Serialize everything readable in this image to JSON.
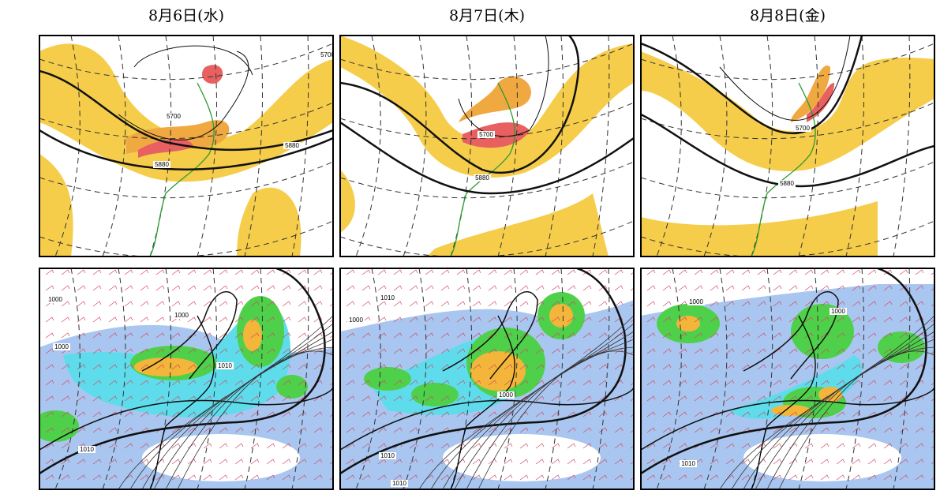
{
  "columns": [
    {
      "date": "8月6日(水)",
      "upper_labels": [
        "5700",
        "5700",
        "5880",
        "5880"
      ],
      "lower_labels": [
        "1000",
        "1000",
        "1000",
        "1010",
        "1010"
      ]
    },
    {
      "date": "8月7日(木)",
      "upper_labels": [
        "5700",
        "5880"
      ],
      "lower_labels": [
        "1010",
        "1000",
        "1000",
        "1010",
        "1010"
      ]
    },
    {
      "date": "8月8日(金)",
      "upper_labels": [
        "5700",
        "5880"
      ],
      "lower_labels": [
        "1000",
        "1000",
        "1010"
      ]
    }
  ]
}
